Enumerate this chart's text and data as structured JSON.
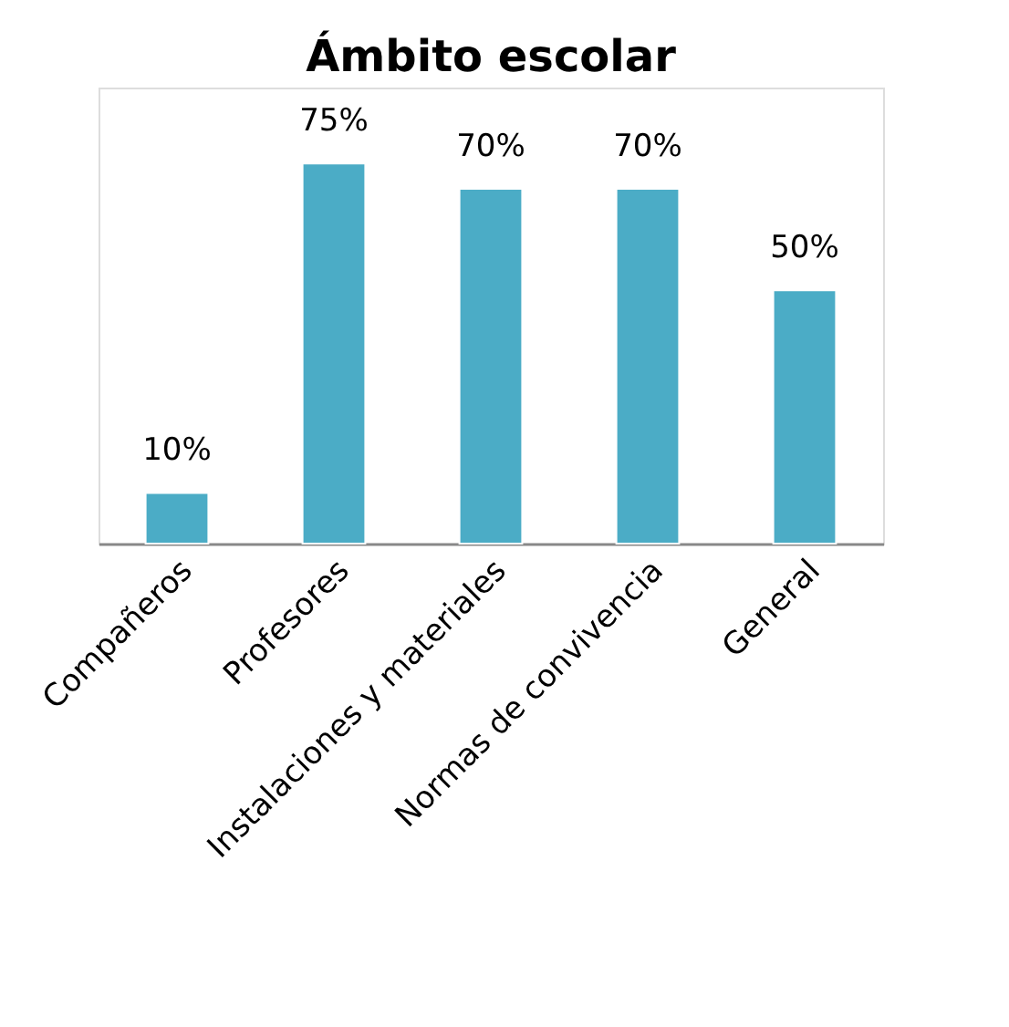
{
  "chart_data": {
    "type": "bar",
    "title": "Ámbito escolar",
    "categories": [
      "Compañeros",
      "Profesores",
      "Instalaciones y materiales",
      "Normas de convivencia",
      "General"
    ],
    "values": [
      10,
      75,
      70,
      70,
      50
    ],
    "value_labels": [
      "10%",
      "75%",
      "70%",
      "70%",
      "50%"
    ],
    "color": "#4bacc6",
    "grid": false
  }
}
